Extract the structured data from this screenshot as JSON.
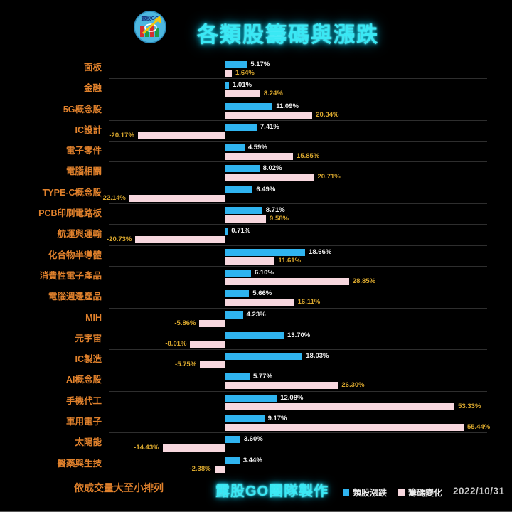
{
  "header": {
    "title": "各類股籌碼與漲跌",
    "logo_text": "露股GO"
  },
  "chart_data": {
    "type": "bar",
    "orientation": "horizontal",
    "title": "各類股籌碼與漲跌",
    "categories": [
      "面板",
      "金融",
      "5G概念股",
      "IC設計",
      "電子零件",
      "電腦相關",
      "TYPE-C概念股",
      "PCB印刷電路板",
      "航運與運輸",
      "化合物半導體",
      "消費性電子產品",
      "電腦週邊產品",
      "MIH",
      "元宇宙",
      "IC製造",
      "AI概念股",
      "手機代工",
      "車用電子",
      "太陽能",
      "醫藥與生技"
    ],
    "series": [
      {
        "name": "類股漲跌",
        "color": "#2fb4f0",
        "values": [
          5.17,
          1.01,
          11.09,
          7.41,
          4.59,
          8.02,
          6.49,
          8.71,
          0.71,
          18.66,
          6.1,
          5.66,
          4.23,
          13.7,
          18.03,
          5.77,
          12.08,
          9.17,
          3.6,
          3.44
        ]
      },
      {
        "name": "籌碼變化",
        "color": "#f7d7de",
        "values": [
          1.64,
          8.24,
          20.34,
          -20.17,
          15.85,
          20.71,
          -22.14,
          9.58,
          -20.73,
          11.61,
          28.85,
          16.11,
          -5.86,
          -8.01,
          -5.75,
          26.3,
          53.33,
          55.44,
          -14.43,
          -2.38
        ]
      }
    ],
    "value_suffix": "%",
    "xlim": [
      -26,
      61
    ],
    "legend_position": "bottom",
    "grid": "horizontal-row-separators",
    "sort_order": "依成交量大至小排列"
  },
  "footer": {
    "sort_note": "依成交量大至小排列",
    "credit": "露股GO團隊製作",
    "legend": [
      {
        "label": "類股漲跌",
        "color": "#2fb4f0"
      },
      {
        "label": "籌碼變化",
        "color": "#f7d7de"
      }
    ],
    "date": "2022/10/31"
  },
  "colors": {
    "background": "#000000",
    "bar_blue": "#2fb4f0",
    "bar_pink": "#f7d7de",
    "value_label_blue_series": "#f0f0f0",
    "value_label_pink_series": "#d9a72e",
    "category_label": "#e0812c",
    "title_glow": "#3ae8f4",
    "grid_line": "#2e2e2e",
    "zero_line": "#7a7a7a",
    "date_text": "#c8c8c8"
  }
}
